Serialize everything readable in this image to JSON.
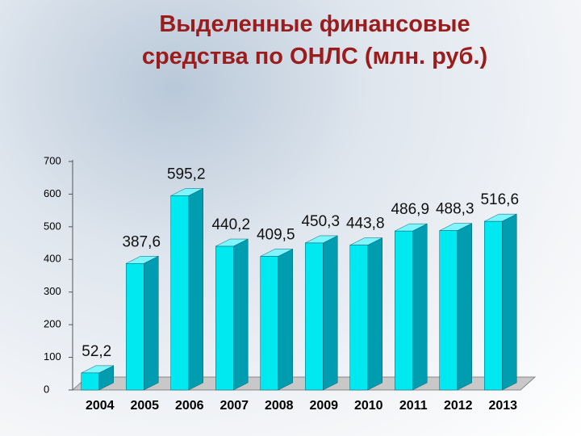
{
  "chart_data": {
    "type": "bar3d",
    "title": "Выделенные финансовые\nсредства по ОНЛС (млн. руб.)",
    "categories": [
      "2004",
      "2005",
      "2006",
      "2007",
      "2008",
      "2009",
      "2010",
      "2011",
      "2012",
      "2013"
    ],
    "values": [
      52.2,
      387.6,
      595.2,
      440.2,
      409.5,
      450.3,
      443.8,
      486.9,
      488.3,
      516.6
    ],
    "value_labels": [
      "52,2",
      "387,6",
      "595,2",
      "440,2",
      "409,5",
      "450,3",
      "443,8",
      "486,9",
      "488,3",
      "516,6"
    ],
    "color": "#00e8f0",
    "ylim": [
      0,
      700
    ],
    "yticks": [
      0,
      100,
      200,
      300,
      400,
      500,
      600,
      700
    ]
  }
}
